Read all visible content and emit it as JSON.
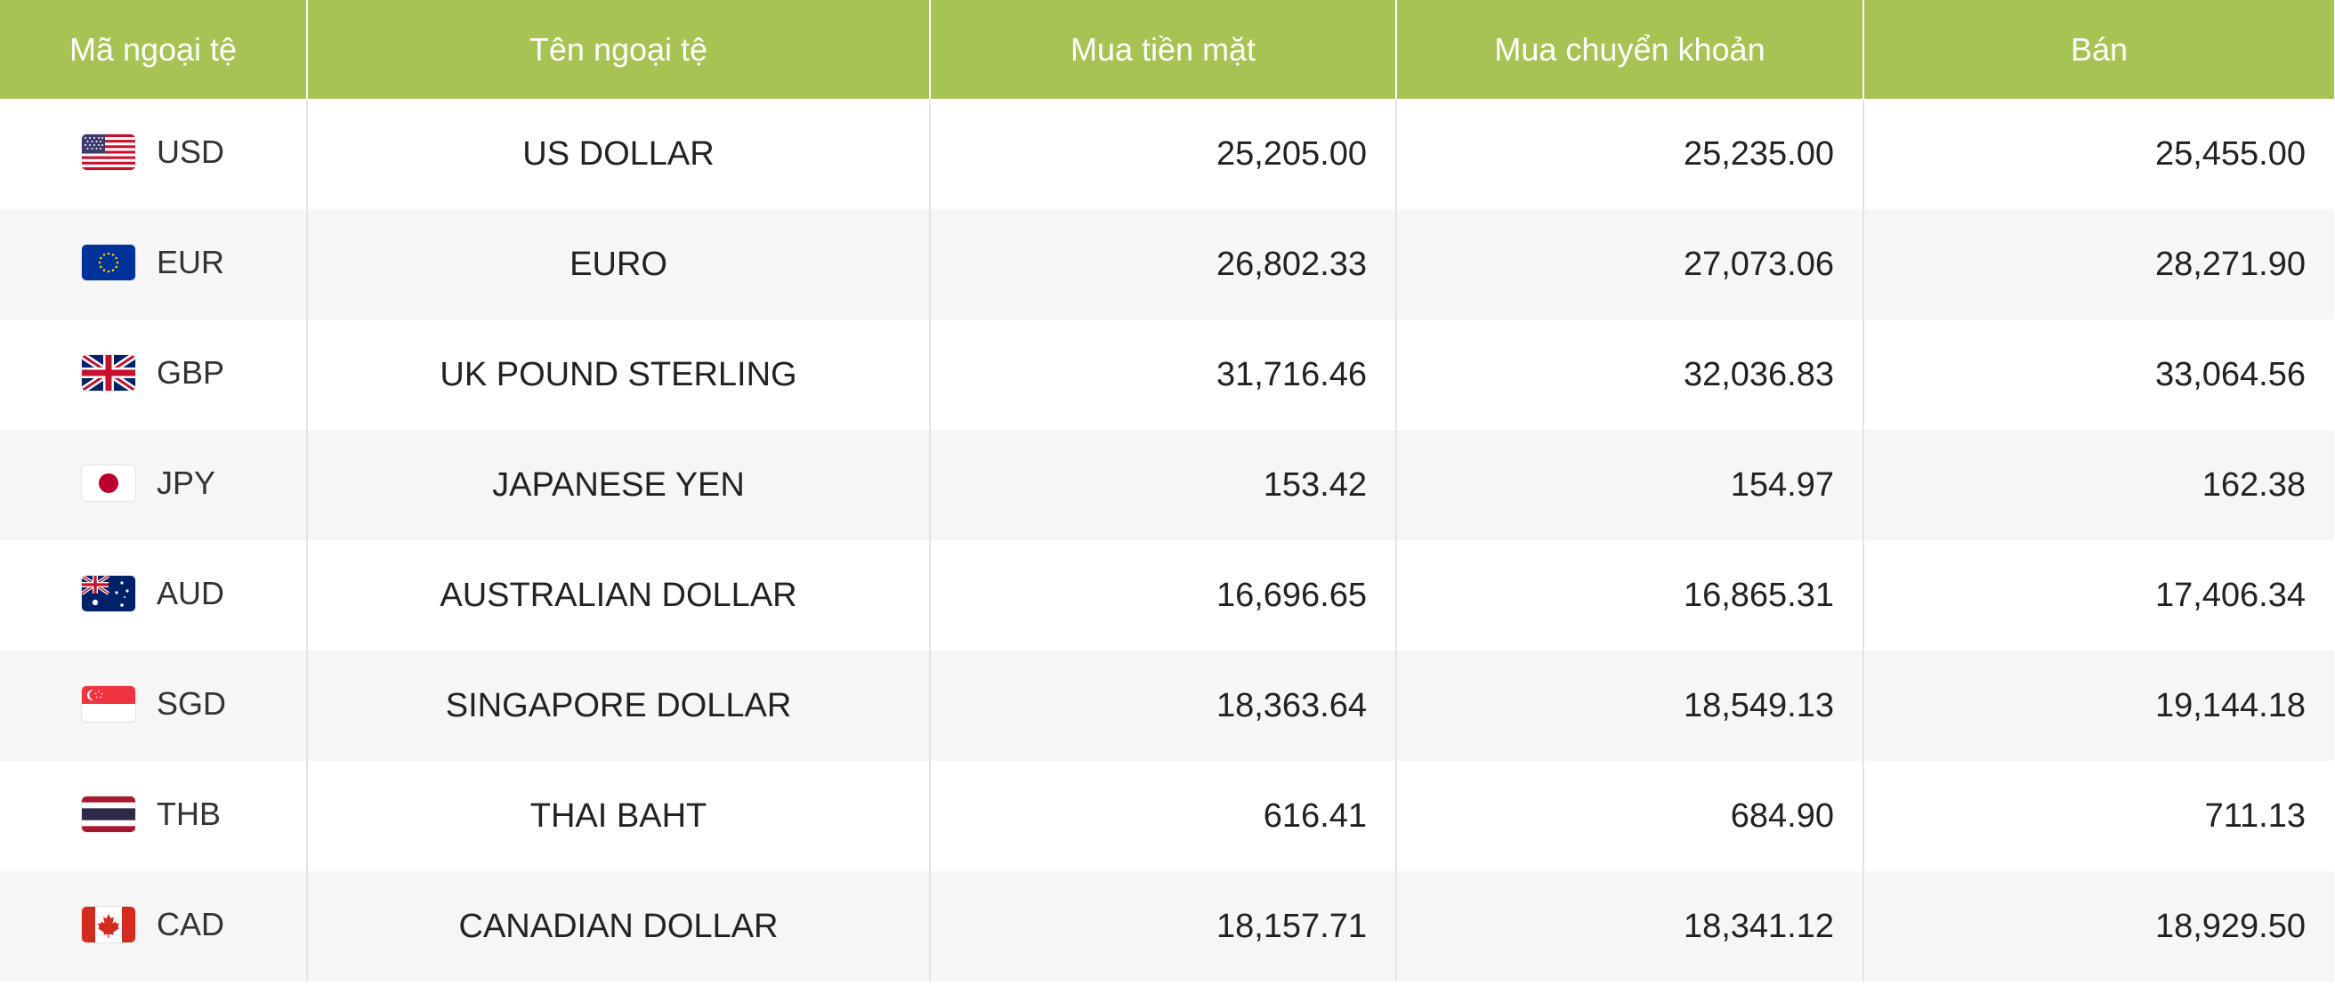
{
  "headers": {
    "code": "Mã ngoại tệ",
    "name": "Tên ngoại tệ",
    "cash_buy": "Mua tiền mặt",
    "transfer_buy": "Mua chuyển khoản",
    "sell": "Bán"
  },
  "colors": {
    "header_bg": "#a6c353",
    "header_text": "#ffffff",
    "row_alt_bg": "#f6f6f6"
  },
  "rows": [
    {
      "flag_icon": "us-flag-icon",
      "code": "USD",
      "name": "US DOLLAR",
      "cash_buy": "25,205.00",
      "transfer_buy": "25,235.00",
      "sell": "25,455.00"
    },
    {
      "flag_icon": "eu-flag-icon",
      "code": "EUR",
      "name": "EURO",
      "cash_buy": "26,802.33",
      "transfer_buy": "27,073.06",
      "sell": "28,271.90"
    },
    {
      "flag_icon": "uk-flag-icon",
      "code": "GBP",
      "name": "UK POUND STERLING",
      "cash_buy": "31,716.46",
      "transfer_buy": "32,036.83",
      "sell": "33,064.56"
    },
    {
      "flag_icon": "japan-flag-icon",
      "code": "JPY",
      "name": "JAPANESE YEN",
      "cash_buy": "153.42",
      "transfer_buy": "154.97",
      "sell": "162.38"
    },
    {
      "flag_icon": "australia-flag-icon",
      "code": "AUD",
      "name": "AUSTRALIAN DOLLAR",
      "cash_buy": "16,696.65",
      "transfer_buy": "16,865.31",
      "sell": "17,406.34"
    },
    {
      "flag_icon": "singapore-flag-icon",
      "code": "SGD",
      "name": "SINGAPORE DOLLAR",
      "cash_buy": "18,363.64",
      "transfer_buy": "18,549.13",
      "sell": "19,144.18"
    },
    {
      "flag_icon": "thailand-flag-icon",
      "code": "THB",
      "name": "THAI BAHT",
      "cash_buy": "616.41",
      "transfer_buy": "684.90",
      "sell": "711.13"
    },
    {
      "flag_icon": "canada-flag-icon",
      "code": "CAD",
      "name": "CANADIAN DOLLAR",
      "cash_buy": "18,157.71",
      "transfer_buy": "18,341.12",
      "sell": "18,929.50"
    }
  ]
}
